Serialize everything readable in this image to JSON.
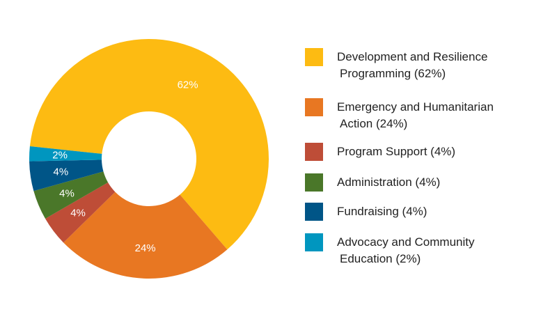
{
  "chart_data": {
    "type": "pie",
    "categories": [
      "Development and Resilience Programming (62%)",
      "Emergency and Humanitarian Action (24%)",
      "Program Support (4%)",
      "Administration (4%)",
      "Fundraising (4%)",
      "Advocacy and Community Education (2%)"
    ],
    "values": [
      62,
      24,
      4,
      4,
      4,
      2
    ],
    "data_labels": [
      "62%",
      "24%",
      "4%",
      "4%",
      "4%",
      "2%"
    ],
    "colors": [
      "#FDBB12",
      "#E87722",
      "#BE4D37",
      "#4A7729",
      "#005587",
      "#0096BF"
    ],
    "donut": true,
    "legend_position": "right"
  },
  "legend": [
    {
      "line1": "Development and Resilience",
      "line2": "Programming (62%)",
      "color": "#FDBB12"
    },
    {
      "line1": "Emergency and Humanitarian",
      "line2": "Action (24%)",
      "color": "#E87722"
    },
    {
      "line1": "Program Support (4%)",
      "line2": "",
      "color": "#BE4D37"
    },
    {
      "line1": "Administration (4%)",
      "line2": "",
      "color": "#4A7729"
    },
    {
      "line1": "Fundraising (4%)",
      "line2": "",
      "color": "#005587"
    },
    {
      "line1": "Advocacy and Community",
      "line2": "Education (2%)",
      "color": "#0096BF"
    }
  ]
}
